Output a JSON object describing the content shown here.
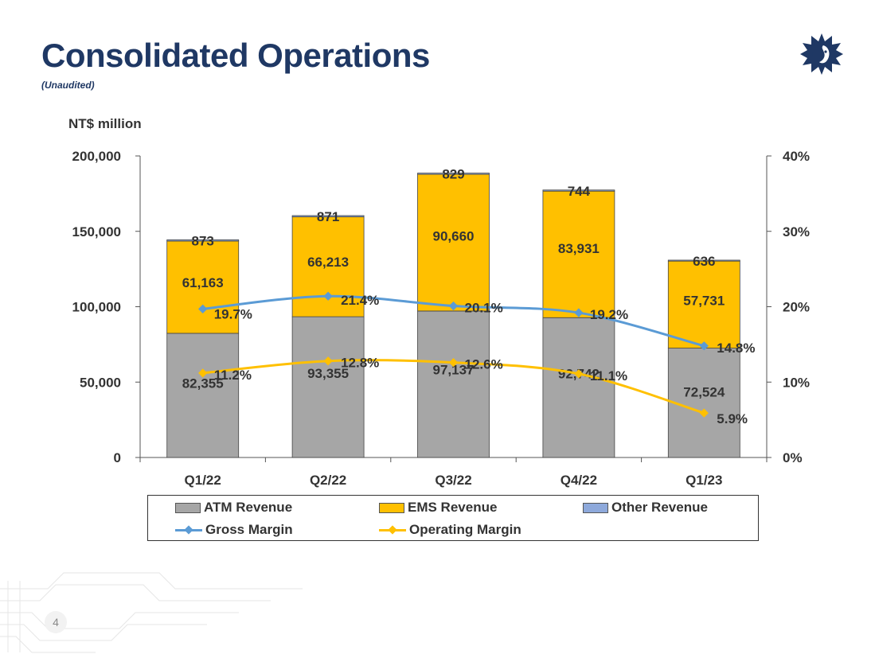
{
  "page": {
    "title": "Consolidated Operations",
    "subtitle": "(Unaudited)",
    "page_number": "4"
  },
  "colors": {
    "title": "#1F3864",
    "atm": "#A6A6A6",
    "ems": "#FFC000",
    "other": "#8EA9DB",
    "gross": "#5B9BD5",
    "operating": "#FFC000"
  },
  "chart_data": {
    "type": "bar",
    "stacked": true,
    "unit_label": "NT$ million",
    "categories": [
      "Q1/22",
      "Q2/22",
      "Q3/22",
      "Q4/22",
      "Q1/23"
    ],
    "series": [
      {
        "name": "ATM Revenue",
        "values": [
          82355,
          93355,
          97137,
          92742,
          72524
        ],
        "labels": [
          "82,355",
          "93,355",
          "97,137",
          "92,742",
          "72,524"
        ]
      },
      {
        "name": "EMS Revenue",
        "values": [
          61163,
          66213,
          90660,
          83931,
          57731
        ],
        "labels": [
          "61,163",
          "66,213",
          "90,660",
          "83,931",
          "57,731"
        ]
      },
      {
        "name": "Other Revenue",
        "values": [
          873,
          871,
          829,
          744,
          636
        ],
        "labels": [
          "873",
          "871",
          "829",
          "744",
          "636"
        ]
      }
    ],
    "lines": [
      {
        "name": "Gross Margin",
        "axis": "right",
        "values": [
          19.7,
          21.4,
          20.1,
          19.2,
          14.8
        ],
        "labels": [
          "19.7%",
          "21.4%",
          "20.1%",
          "19.2%",
          "14.8%"
        ]
      },
      {
        "name": "Operating Margin",
        "axis": "right",
        "values": [
          11.2,
          12.8,
          12.6,
          11.1,
          5.9
        ],
        "labels": [
          "11.2%",
          "12.8%",
          "12.6%",
          "11.1%",
          "5.9%"
        ]
      }
    ],
    "y_left": {
      "min": 0,
      "max": 200000,
      "ticks": [
        0,
        50000,
        100000,
        150000,
        200000
      ],
      "tick_labels": [
        "0",
        "50,000",
        "100,000",
        "150,000",
        "200,000"
      ]
    },
    "y_right": {
      "min": 0,
      "max": 40,
      "ticks": [
        0,
        10,
        20,
        30,
        40
      ],
      "tick_labels": [
        "0%",
        "10%",
        "20%",
        "30%",
        "40%"
      ]
    },
    "legend": {
      "position": "bottom",
      "items": [
        "ATM Revenue",
        "EMS Revenue",
        "Other Revenue",
        "Gross Margin",
        "Operating Margin"
      ]
    }
  }
}
